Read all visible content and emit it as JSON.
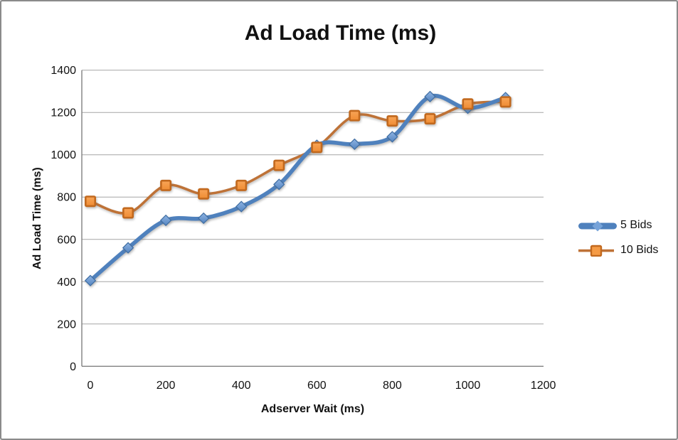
{
  "chart_data": {
    "type": "line",
    "title": "Ad Load Time (ms)",
    "xlabel": "Adserver Wait (ms)",
    "ylabel": "Ad Load Time (ms)",
    "x": [
      0,
      100,
      200,
      300,
      400,
      500,
      600,
      700,
      800,
      900,
      1000,
      1100
    ],
    "series": [
      {
        "name": "5 Bids",
        "color": "#4F81BD",
        "marker": "diamond",
        "marker_fill": "#76A3D9",
        "marker_stroke": "#3E6DA3",
        "values": [
          405,
          560,
          690,
          700,
          755,
          860,
          1045,
          1050,
          1085,
          1275,
          1220,
          1270
        ]
      },
      {
        "name": "10 Bids",
        "color": "#BE7237",
        "marker": "square",
        "marker_fill": "#F59B45",
        "marker_stroke": "#C2691E",
        "values": [
          780,
          725,
          855,
          815,
          855,
          950,
          1035,
          1185,
          1160,
          1170,
          1240,
          1250
        ]
      }
    ],
    "xlim": [
      0,
      1200
    ],
    "ylim": [
      0,
      1400
    ],
    "x_ticks": [
      0,
      200,
      400,
      600,
      800,
      1000,
      1200
    ],
    "y_ticks": [
      0,
      200,
      400,
      600,
      800,
      1000,
      1200,
      1400
    ],
    "grid": "horizontal-only",
    "gridline_color": "#A6A6A6",
    "axis_color": "#808080",
    "line_style": "smooth",
    "legend_position": "right-middle"
  }
}
